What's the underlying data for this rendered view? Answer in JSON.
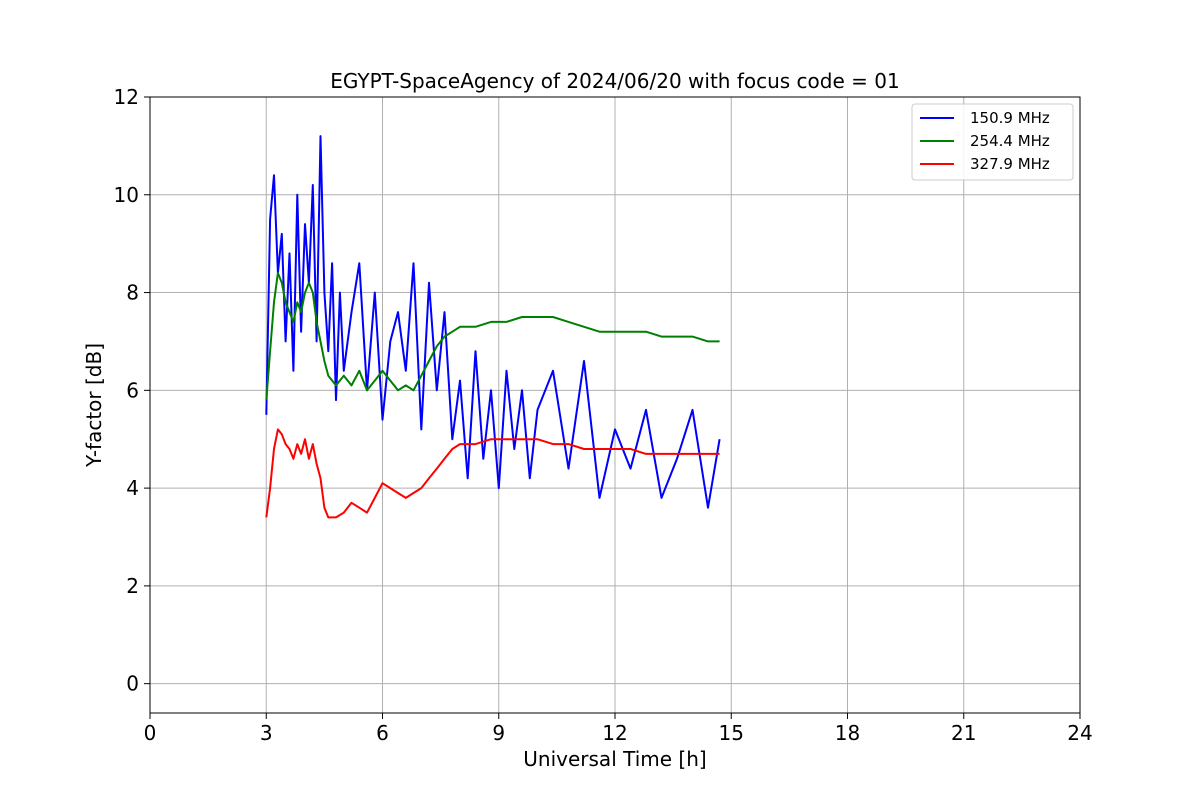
{
  "chart_data": {
    "type": "line",
    "title": "EGYPT-SpaceAgency of 2024/06/20 with focus code = 01",
    "xlabel": "Universal Time [h]",
    "ylabel": "Y-factor [dB]",
    "xlim": [
      0,
      24
    ],
    "ylim": [
      -0.6,
      12
    ],
    "xticks": [
      0,
      3,
      6,
      9,
      12,
      15,
      18,
      21,
      24
    ],
    "yticks": [
      0,
      2,
      4,
      6,
      8,
      10,
      12
    ],
    "grid": true,
    "legend_position": "top-right",
    "series": [
      {
        "name": "150.9 MHz",
        "color": "#0000ff",
        "x": [
          3.0,
          3.1,
          3.2,
          3.3,
          3.4,
          3.5,
          3.6,
          3.7,
          3.8,
          3.9,
          4.0,
          4.1,
          4.2,
          4.3,
          4.4,
          4.5,
          4.6,
          4.7,
          4.8,
          4.9,
          5.0,
          5.2,
          5.4,
          5.6,
          5.8,
          6.0,
          6.2,
          6.4,
          6.6,
          6.8,
          7.0,
          7.2,
          7.4,
          7.6,
          7.8,
          8.0,
          8.2,
          8.4,
          8.6,
          8.8,
          9.0,
          9.2,
          9.4,
          9.6,
          9.8,
          10.0,
          10.4,
          10.8,
          11.2,
          11.6,
          12.0,
          12.4,
          12.8,
          13.2,
          13.6,
          14.0,
          14.4,
          14.7
        ],
        "y": [
          5.5,
          9.5,
          10.4,
          8.4,
          9.2,
          7.0,
          8.8,
          6.4,
          10.0,
          7.2,
          9.4,
          8.2,
          10.2,
          7.0,
          11.2,
          8.0,
          6.8,
          8.6,
          5.8,
          8.0,
          6.4,
          7.6,
          8.6,
          6.0,
          8.0,
          5.4,
          7.0,
          7.6,
          6.4,
          8.6,
          5.2,
          8.2,
          6.0,
          7.6,
          5.0,
          6.2,
          4.2,
          6.8,
          4.6,
          6.0,
          4.0,
          6.4,
          4.8,
          6.0,
          4.2,
          5.6,
          6.4,
          4.4,
          6.6,
          3.8,
          5.2,
          4.4,
          5.6,
          3.8,
          4.6,
          5.6,
          3.6,
          5.0
        ]
      },
      {
        "name": "254.4 MHz",
        "color": "#008000",
        "x": [
          3.0,
          3.1,
          3.2,
          3.3,
          3.4,
          3.5,
          3.6,
          3.7,
          3.8,
          3.9,
          4.0,
          4.1,
          4.2,
          4.3,
          4.4,
          4.5,
          4.6,
          4.8,
          5.0,
          5.2,
          5.4,
          5.6,
          5.8,
          6.0,
          6.2,
          6.4,
          6.6,
          6.8,
          7.0,
          7.2,
          7.4,
          7.6,
          7.8,
          8.0,
          8.4,
          8.8,
          9.2,
          9.6,
          10.0,
          10.4,
          10.8,
          11.2,
          11.6,
          12.0,
          12.4,
          12.8,
          13.2,
          13.6,
          14.0,
          14.4,
          14.7
        ],
        "y": [
          5.8,
          6.8,
          7.8,
          8.4,
          8.2,
          7.8,
          7.6,
          7.4,
          7.8,
          7.6,
          8.0,
          8.2,
          8.0,
          7.4,
          7.0,
          6.6,
          6.3,
          6.1,
          6.3,
          6.1,
          6.4,
          6.0,
          6.2,
          6.4,
          6.2,
          6.0,
          6.1,
          6.0,
          6.3,
          6.6,
          6.9,
          7.1,
          7.2,
          7.3,
          7.3,
          7.4,
          7.4,
          7.5,
          7.5,
          7.5,
          7.4,
          7.3,
          7.2,
          7.2,
          7.2,
          7.2,
          7.1,
          7.1,
          7.1,
          7.0,
          7.0
        ]
      },
      {
        "name": "327.9 MHz",
        "color": "#ff0000",
        "x": [
          3.0,
          3.1,
          3.2,
          3.3,
          3.4,
          3.5,
          3.6,
          3.7,
          3.8,
          3.9,
          4.0,
          4.1,
          4.2,
          4.3,
          4.4,
          4.5,
          4.6,
          4.8,
          5.0,
          5.2,
          5.4,
          5.6,
          5.8,
          6.0,
          6.2,
          6.4,
          6.6,
          6.8,
          7.0,
          7.2,
          7.4,
          7.6,
          7.8,
          8.0,
          8.4,
          8.8,
          9.2,
          9.6,
          10.0,
          10.4,
          10.8,
          11.2,
          11.6,
          12.0,
          12.4,
          12.8,
          13.2,
          13.6,
          14.0,
          14.4,
          14.7
        ],
        "y": [
          3.4,
          4.0,
          4.8,
          5.2,
          5.1,
          4.9,
          4.8,
          4.6,
          4.9,
          4.7,
          5.0,
          4.6,
          4.9,
          4.5,
          4.2,
          3.6,
          3.4,
          3.4,
          3.5,
          3.7,
          3.6,
          3.5,
          3.8,
          4.1,
          4.0,
          3.9,
          3.8,
          3.9,
          4.0,
          4.2,
          4.4,
          4.6,
          4.8,
          4.9,
          4.9,
          5.0,
          5.0,
          5.0,
          5.0,
          4.9,
          4.9,
          4.8,
          4.8,
          4.8,
          4.8,
          4.7,
          4.7,
          4.7,
          4.7,
          4.7,
          4.7
        ]
      }
    ]
  }
}
